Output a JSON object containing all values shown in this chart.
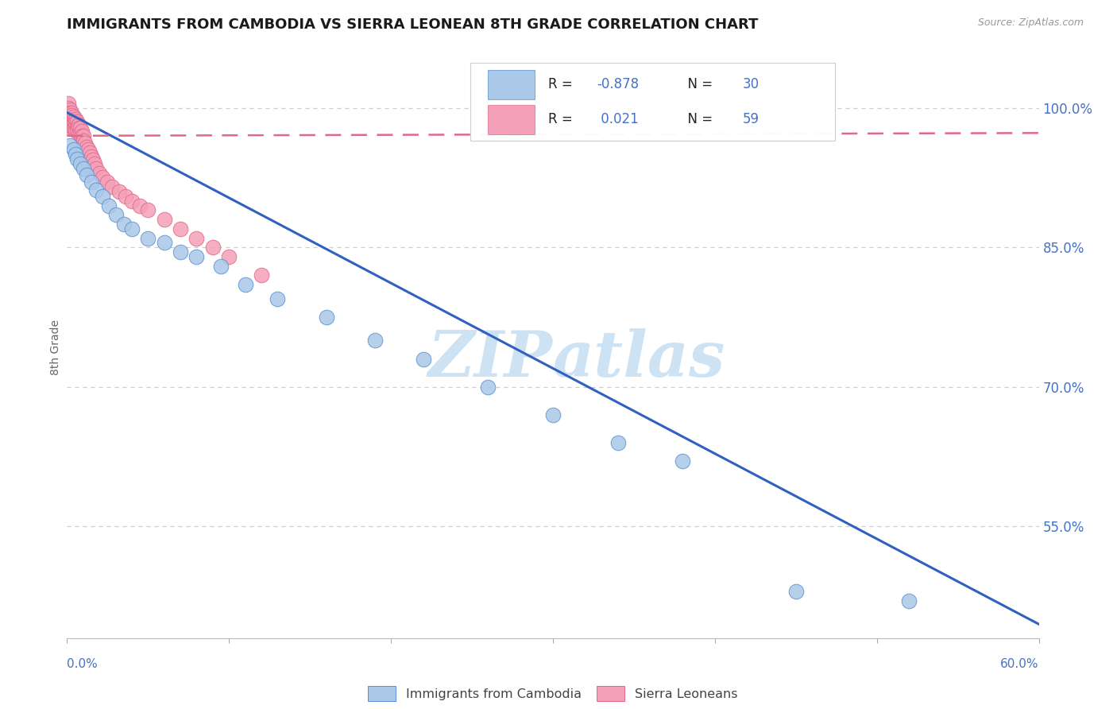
{
  "title": "IMMIGRANTS FROM CAMBODIA VS SIERRA LEONEAN 8TH GRADE CORRELATION CHART",
  "source": "Source: ZipAtlas.com",
  "ylabel": "8th Grade",
  "R_blue": -0.878,
  "N_blue": 30,
  "R_pink": 0.021,
  "N_pink": 59,
  "blue_scatter_color": "#aac8e8",
  "pink_scatter_color": "#f4a0b8",
  "blue_edge_color": "#5b8fd0",
  "pink_edge_color": "#e06888",
  "blue_line_color": "#3060c0",
  "pink_line_color": "#e06888",
  "title_color": "#1a1a1a",
  "axis_tick_color": "#4472c4",
  "grid_color": "#cccccc",
  "source_color": "#999999",
  "ylabel_color": "#666666",
  "watermark_color": "#cce4f5",
  "legend_blue_label": "Immigrants from Cambodia",
  "legend_pink_label": "Sierra Leoneans",
  "xlim": [
    0.0,
    0.6
  ],
  "ylim": [
    0.43,
    1.055
  ],
  "ytick_vals": [
    0.55,
    0.7,
    0.85,
    1.0
  ],
  "ytick_labels": [
    "55.0%",
    "70.0%",
    "85.0%",
    "100.0%"
  ],
  "blue_x": [
    0.002,
    0.004,
    0.005,
    0.006,
    0.008,
    0.01,
    0.012,
    0.015,
    0.018,
    0.022,
    0.026,
    0.03,
    0.035,
    0.04,
    0.05,
    0.06,
    0.07,
    0.08,
    0.095,
    0.11,
    0.13,
    0.16,
    0.19,
    0.22,
    0.26,
    0.3,
    0.34,
    0.38,
    0.45,
    0.52
  ],
  "blue_y": [
    0.96,
    0.955,
    0.95,
    0.945,
    0.94,
    0.935,
    0.928,
    0.92,
    0.912,
    0.905,
    0.895,
    0.885,
    0.875,
    0.87,
    0.86,
    0.855,
    0.845,
    0.84,
    0.83,
    0.81,
    0.795,
    0.775,
    0.75,
    0.73,
    0.7,
    0.67,
    0.64,
    0.62,
    0.48,
    0.47
  ],
  "pink_x": [
    0.001,
    0.001,
    0.001,
    0.001,
    0.002,
    0.002,
    0.002,
    0.002,
    0.002,
    0.002,
    0.002,
    0.003,
    0.003,
    0.003,
    0.003,
    0.003,
    0.004,
    0.004,
    0.004,
    0.004,
    0.005,
    0.005,
    0.005,
    0.005,
    0.006,
    0.006,
    0.006,
    0.007,
    0.007,
    0.007,
    0.008,
    0.008,
    0.009,
    0.009,
    0.01,
    0.01,
    0.011,
    0.012,
    0.013,
    0.014,
    0.015,
    0.016,
    0.017,
    0.018,
    0.02,
    0.022,
    0.025,
    0.028,
    0.032,
    0.036,
    0.04,
    0.045,
    0.05,
    0.06,
    0.07,
    0.08,
    0.09,
    0.1,
    0.12
  ],
  "pink_y": [
    1.005,
    1.0,
    0.995,
    0.99,
    0.998,
    0.995,
    0.992,
    0.988,
    0.985,
    0.982,
    0.978,
    0.995,
    0.992,
    0.988,
    0.985,
    0.98,
    0.99,
    0.986,
    0.983,
    0.978,
    0.988,
    0.984,
    0.98,
    0.976,
    0.985,
    0.98,
    0.976,
    0.982,
    0.978,
    0.972,
    0.978,
    0.972,
    0.975,
    0.97,
    0.97,
    0.965,
    0.962,
    0.958,
    0.955,
    0.952,
    0.948,
    0.944,
    0.94,
    0.935,
    0.93,
    0.925,
    0.92,
    0.915,
    0.91,
    0.905,
    0.9,
    0.895,
    0.89,
    0.88,
    0.87,
    0.86,
    0.85,
    0.84,
    0.82
  ],
  "blue_trend_x": [
    0.0,
    0.6
  ],
  "blue_trend_y": [
    0.995,
    0.445
  ],
  "pink_trend_x": [
    0.0,
    0.6
  ],
  "pink_trend_y": [
    0.97,
    0.973
  ]
}
